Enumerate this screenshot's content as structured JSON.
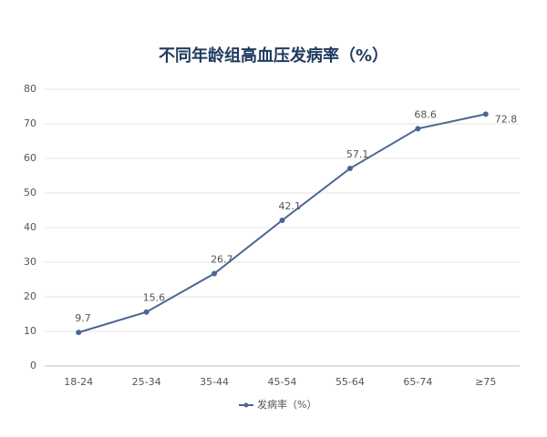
{
  "chart_data": {
    "type": "line",
    "title": "不同年龄组高血压发病率（%）",
    "categories": [
      "18-24",
      "25-34",
      "35-44",
      "45-54",
      "55-64",
      "65-74",
      "≥75"
    ],
    "series": [
      {
        "name": "发病率（%）",
        "color": "#4a6690",
        "values": [
          9.7,
          15.6,
          26.7,
          42.1,
          57.1,
          68.6,
          72.8
        ]
      }
    ],
    "ylim": [
      0,
      80
    ],
    "yticks": [
      0,
      10,
      20,
      30,
      40,
      50,
      60,
      70,
      80
    ],
    "grid": true,
    "legend": "bottom"
  }
}
